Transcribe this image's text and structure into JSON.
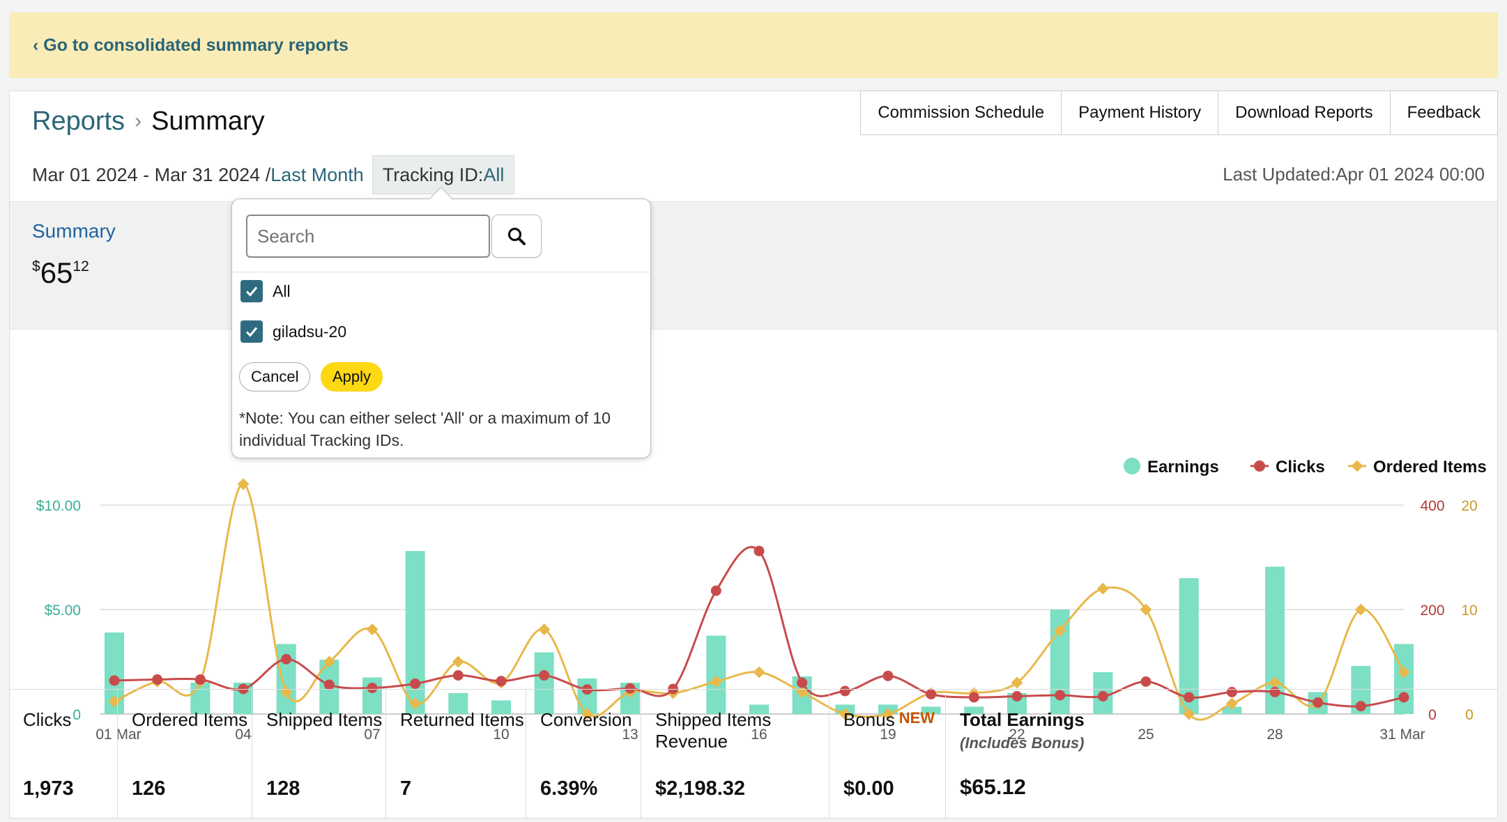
{
  "banner": {
    "link_text": "‹ Go to consolidated summary reports"
  },
  "breadcrumb": {
    "parent": "Reports",
    "separator": "›",
    "current": "Summary"
  },
  "tabs": [
    "Commission Schedule",
    "Payment History",
    "Download Reports",
    "Feedback"
  ],
  "date_range": {
    "range": "Mar 01 2024 - Mar 31 2024 /",
    "period_link": "Last Month"
  },
  "tracking": {
    "label": "Tracking ID:",
    "value": "All"
  },
  "last_updated": "Last Updated:Apr 01 2024 00:00",
  "summary": {
    "title": "Summary",
    "currency": "$",
    "dollars": "65",
    "cents": "12"
  },
  "dropdown": {
    "search_placeholder": "Search",
    "options": [
      {
        "label": "All",
        "checked": true
      },
      {
        "label": "giladsu-20",
        "checked": true
      }
    ],
    "cancel_label": "Cancel",
    "apply_label": "Apply",
    "note": "*Note: You can either select 'All' or a maximum of 10 individual Tracking IDs."
  },
  "metrics": [
    {
      "label": "Clicks",
      "value": "1,973"
    },
    {
      "label": "Ordered Items",
      "value": "126"
    },
    {
      "label": "Shipped Items",
      "value": "128"
    },
    {
      "label": "Returned Items",
      "value": "7"
    },
    {
      "label": "Conversion",
      "value": "6.39%"
    },
    {
      "label": "Shipped Items Revenue",
      "value": "$2,198.32"
    },
    {
      "label": "Bonus",
      "badge": "NEW",
      "value": "$0.00"
    },
    {
      "label": "Total Earnings",
      "sublabel": "(Includes Bonus)",
      "value": "$65.12"
    }
  ],
  "chart_data": {
    "type": "bar",
    "x": [
      1,
      2,
      3,
      4,
      5,
      6,
      7,
      8,
      9,
      10,
      11,
      12,
      13,
      14,
      15,
      16,
      17,
      18,
      19,
      20,
      21,
      22,
      23,
      24,
      25,
      26,
      27,
      28,
      29,
      30,
      31
    ],
    "x_tick_labels": [
      {
        "x": 1,
        "label": "01 Mar"
      },
      {
        "x": 4,
        "label": "04"
      },
      {
        "x": 7,
        "label": "07"
      },
      {
        "x": 10,
        "label": "10"
      },
      {
        "x": 13,
        "label": "13"
      },
      {
        "x": 16,
        "label": "16"
      },
      {
        "x": 19,
        "label": "19"
      },
      {
        "x": 22,
        "label": "22"
      },
      {
        "x": 25,
        "label": "25"
      },
      {
        "x": 28,
        "label": "28"
      },
      {
        "x": 31,
        "label": "31 Mar"
      }
    ],
    "y_left": {
      "ticks": [
        "0",
        "$5.00",
        "$10.00"
      ],
      "range": [
        0,
        10
      ]
    },
    "y_right_clicks": {
      "ticks": [
        "0",
        "200",
        "400"
      ],
      "range": [
        0,
        400
      ]
    },
    "y_right_items": {
      "ticks": [
        "0",
        "10",
        "20"
      ],
      "range": [
        0,
        20
      ]
    },
    "legend_position": "top-right",
    "grid": true,
    "series": [
      {
        "name": "Earnings",
        "kind": "bar",
        "axis": "left",
        "color": "#7ddfc3",
        "values": [
          3.9,
          0,
          1.5,
          1.5,
          3.35,
          2.6,
          1.75,
          7.8,
          1.0,
          0.65,
          2.95,
          1.7,
          1.5,
          0,
          3.75,
          0.45,
          1.8,
          0.45,
          0.45,
          0.35,
          0.35,
          1.0,
          5.0,
          2.0,
          0,
          6.5,
          0.35,
          7.05,
          1.05,
          2.3,
          3.35
        ]
      },
      {
        "name": "Clicks",
        "kind": "line",
        "axis": "right_clicks",
        "color": "#c84b4b",
        "values": [
          64,
          66,
          66,
          48,
          105,
          56,
          50,
          58,
          74,
          63,
          74,
          47,
          49,
          48,
          236,
          312,
          60,
          44,
          73,
          38,
          32,
          34,
          36,
          34,
          62,
          32,
          42,
          42,
          22,
          15,
          32
        ]
      },
      {
        "name": "Ordered Items",
        "kind": "line",
        "axis": "right_items",
        "color": "#e8b84a",
        "values": [
          1.2,
          3.1,
          3.1,
          22,
          2.1,
          5.0,
          8.1,
          1.0,
          5.0,
          3.0,
          8.1,
          0.0,
          2.1,
          2.0,
          3.1,
          4.0,
          2.1,
          0.0,
          0.0,
          2.0,
          2.0,
          3.0,
          8.0,
          12.0,
          10.0,
          0.0,
          1.0,
          3.0,
          1.0,
          10.0,
          4.0
        ]
      }
    ]
  }
}
